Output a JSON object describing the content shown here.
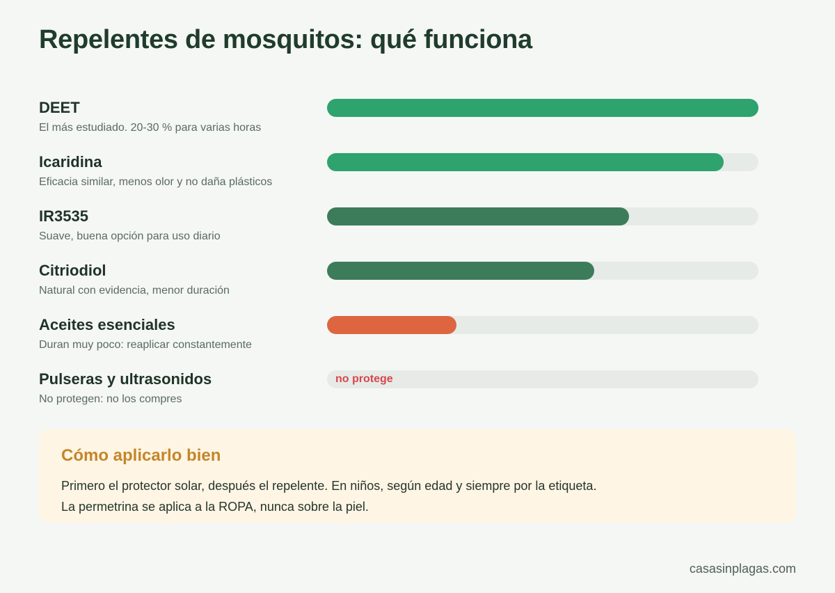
{
  "title": "Repelentes de mosquitos: qué funciona",
  "colors": {
    "strong": "#2ea36d",
    "medium": "#3d7c5a",
    "weak": "#dd6640",
    "none_text": "#d6484b",
    "track": "#e7ebe8"
  },
  "chart_data": {
    "type": "bar",
    "orientation": "horizontal",
    "title": "Repelentes de mosquitos: qué funciona",
    "xlim": [
      0,
      100
    ],
    "categories": [
      "DEET",
      "Icaridina",
      "IR3535",
      "Citriodiol",
      "Aceites esenciales",
      "Pulseras y ultrasonidos"
    ],
    "values": [
      100,
      92,
      70,
      62,
      30,
      0
    ],
    "bars": [
      {
        "label": "DEET",
        "description": "El más estudiado. 20-30 % para varias horas",
        "value": 100,
        "color": "#2ea36d"
      },
      {
        "label": "Icaridina",
        "description": "Eficacia similar, menos olor y no daña plásticos",
        "value": 92,
        "color": "#2ea36d"
      },
      {
        "label": "IR3535",
        "description": "Suave, buena opción para uso diario",
        "value": 70,
        "color": "#3d7c5a"
      },
      {
        "label": "Citriodiol",
        "description": "Natural con evidencia, menor duración",
        "value": 62,
        "color": "#3d7c5a"
      },
      {
        "label": "Aceites esenciales",
        "description": "Duran muy poco: reaplicar constantemente",
        "value": 30,
        "color": "#dd6640"
      },
      {
        "label": "Pulseras y ultrasonidos",
        "description": "No protegen: no los compres",
        "value": 0,
        "color": "#d6484b",
        "bar_text": "no protege"
      }
    ]
  },
  "tip": {
    "title": "Cómo aplicarlo bien",
    "line1": "Primero el protector solar, después el repelente. En niños, según edad y siempre por la etiqueta.",
    "line2": "La permetrina se aplica a la ROPA, nunca sobre la piel."
  },
  "footer": "casasinplagas.com"
}
